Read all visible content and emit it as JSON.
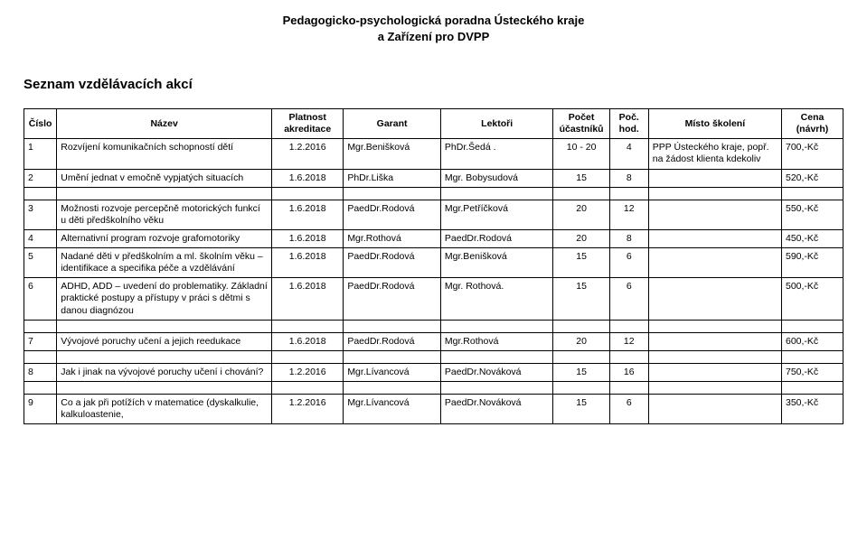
{
  "org_line1": "Pedagogicko-psychologická poradna Ústeckého kraje",
  "org_line2": "a Zařízení pro DVPP",
  "page_title": "Seznam vzdělávacích akcí",
  "headers": {
    "num": "Číslo",
    "name": "Název",
    "acc": "Platnost akreditace",
    "gar": "Garant",
    "lect": "Lektoři",
    "cnt": "Počet účastníků",
    "hrs": "Poč. hod.",
    "loc": "Místo školení",
    "price": "Cena (návrh)"
  },
  "rows": [
    {
      "num": "1",
      "name": "Rozvíjení komunikačních schopností dětí",
      "acc": "1.2.2016",
      "gar": "Mgr.Benišková",
      "lect": "PhDr.Šedá  .",
      "cnt": "10 - 20",
      "hrs": "4",
      "loc": "PPP Ústeckého kraje, popř. na žádost klienta kdekoliv",
      "price": "700,-Kč"
    },
    {
      "num": "2",
      "name": "Umění jednat v emočně vypjatých situacích",
      "acc": "1.6.2018",
      "gar": "PhDr.Liška",
      "lect": "Mgr. Bobysudová",
      "cnt": "15",
      "hrs": "8",
      "loc": "",
      "price": "520,-Kč"
    },
    {
      "num": "3",
      "name": "Možnosti rozvoje percepčně motorických funkcí u děti předškolního věku",
      "acc": "1.6.2018",
      "gar": "PaedDr.Rodová",
      "lect": "Mgr.Petříčková",
      "cnt": "20",
      "hrs": "12",
      "loc": "",
      "price": "550,-Kč"
    },
    {
      "num": "4",
      "name": "Alternativní program rozvoje grafomotoriky",
      "acc": "1.6.2018",
      "gar": "Mgr.Rothová",
      "lect": "PaedDr.Rodová",
      "cnt": "20",
      "hrs": "8",
      "loc": "",
      "price": "450,-Kč"
    },
    {
      "num": "5",
      "name": "Nadané děti v předškolním a ml. školním věku – identifikace a specifika péče a vzdělávání",
      "acc": "1.6.2018",
      "gar": "PaedDr.Rodová",
      "lect": "Mgr.Benišková",
      "cnt": "15",
      "hrs": "6",
      "loc": "",
      "price": "590,-Kč"
    },
    {
      "num": "6",
      "name": "ADHD, ADD – uvedení do problematiky. Základní praktické postupy a přístupy v práci s dětmi s danou diagnózou",
      "acc": "1.6.2018",
      "gar": "PaedDr.Rodová",
      "lect": "Mgr. Rothová.",
      "cnt": "15",
      "hrs": "6",
      "loc": "",
      "price": "500,-Kč"
    },
    {
      "num": "7",
      "name": "Vývojové poruchy učení a jejich reedukace",
      "acc": "1.6.2018",
      "gar": "PaedDr.Rodová",
      "lect": "Mgr.Rothová",
      "cnt": "20",
      "hrs": "12",
      "loc": "",
      "price": "600,-Kč"
    },
    {
      "num": "8",
      "name": "Jak i jinak na vývojové poruchy učení i chování?",
      "acc": "1.2.2016",
      "gar": "Mgr.Lívancová",
      "lect": "PaedDr.Nováková",
      "cnt": "15",
      "hrs": "16",
      "loc": "",
      "price": "750,-Kč"
    },
    {
      "num": "9",
      "name": "Co a jak při potížích v matematice (dyskalkulie, kalkuloastenie,",
      "acc": "1.2.2016",
      "gar": "Mgr.Lívancová",
      "lect": "PaedDr.Nováková",
      "cnt": "15",
      "hrs": "6",
      "loc": "",
      "price": "350,-Kč"
    }
  ],
  "gap_after": [
    2,
    6,
    7,
    8
  ]
}
